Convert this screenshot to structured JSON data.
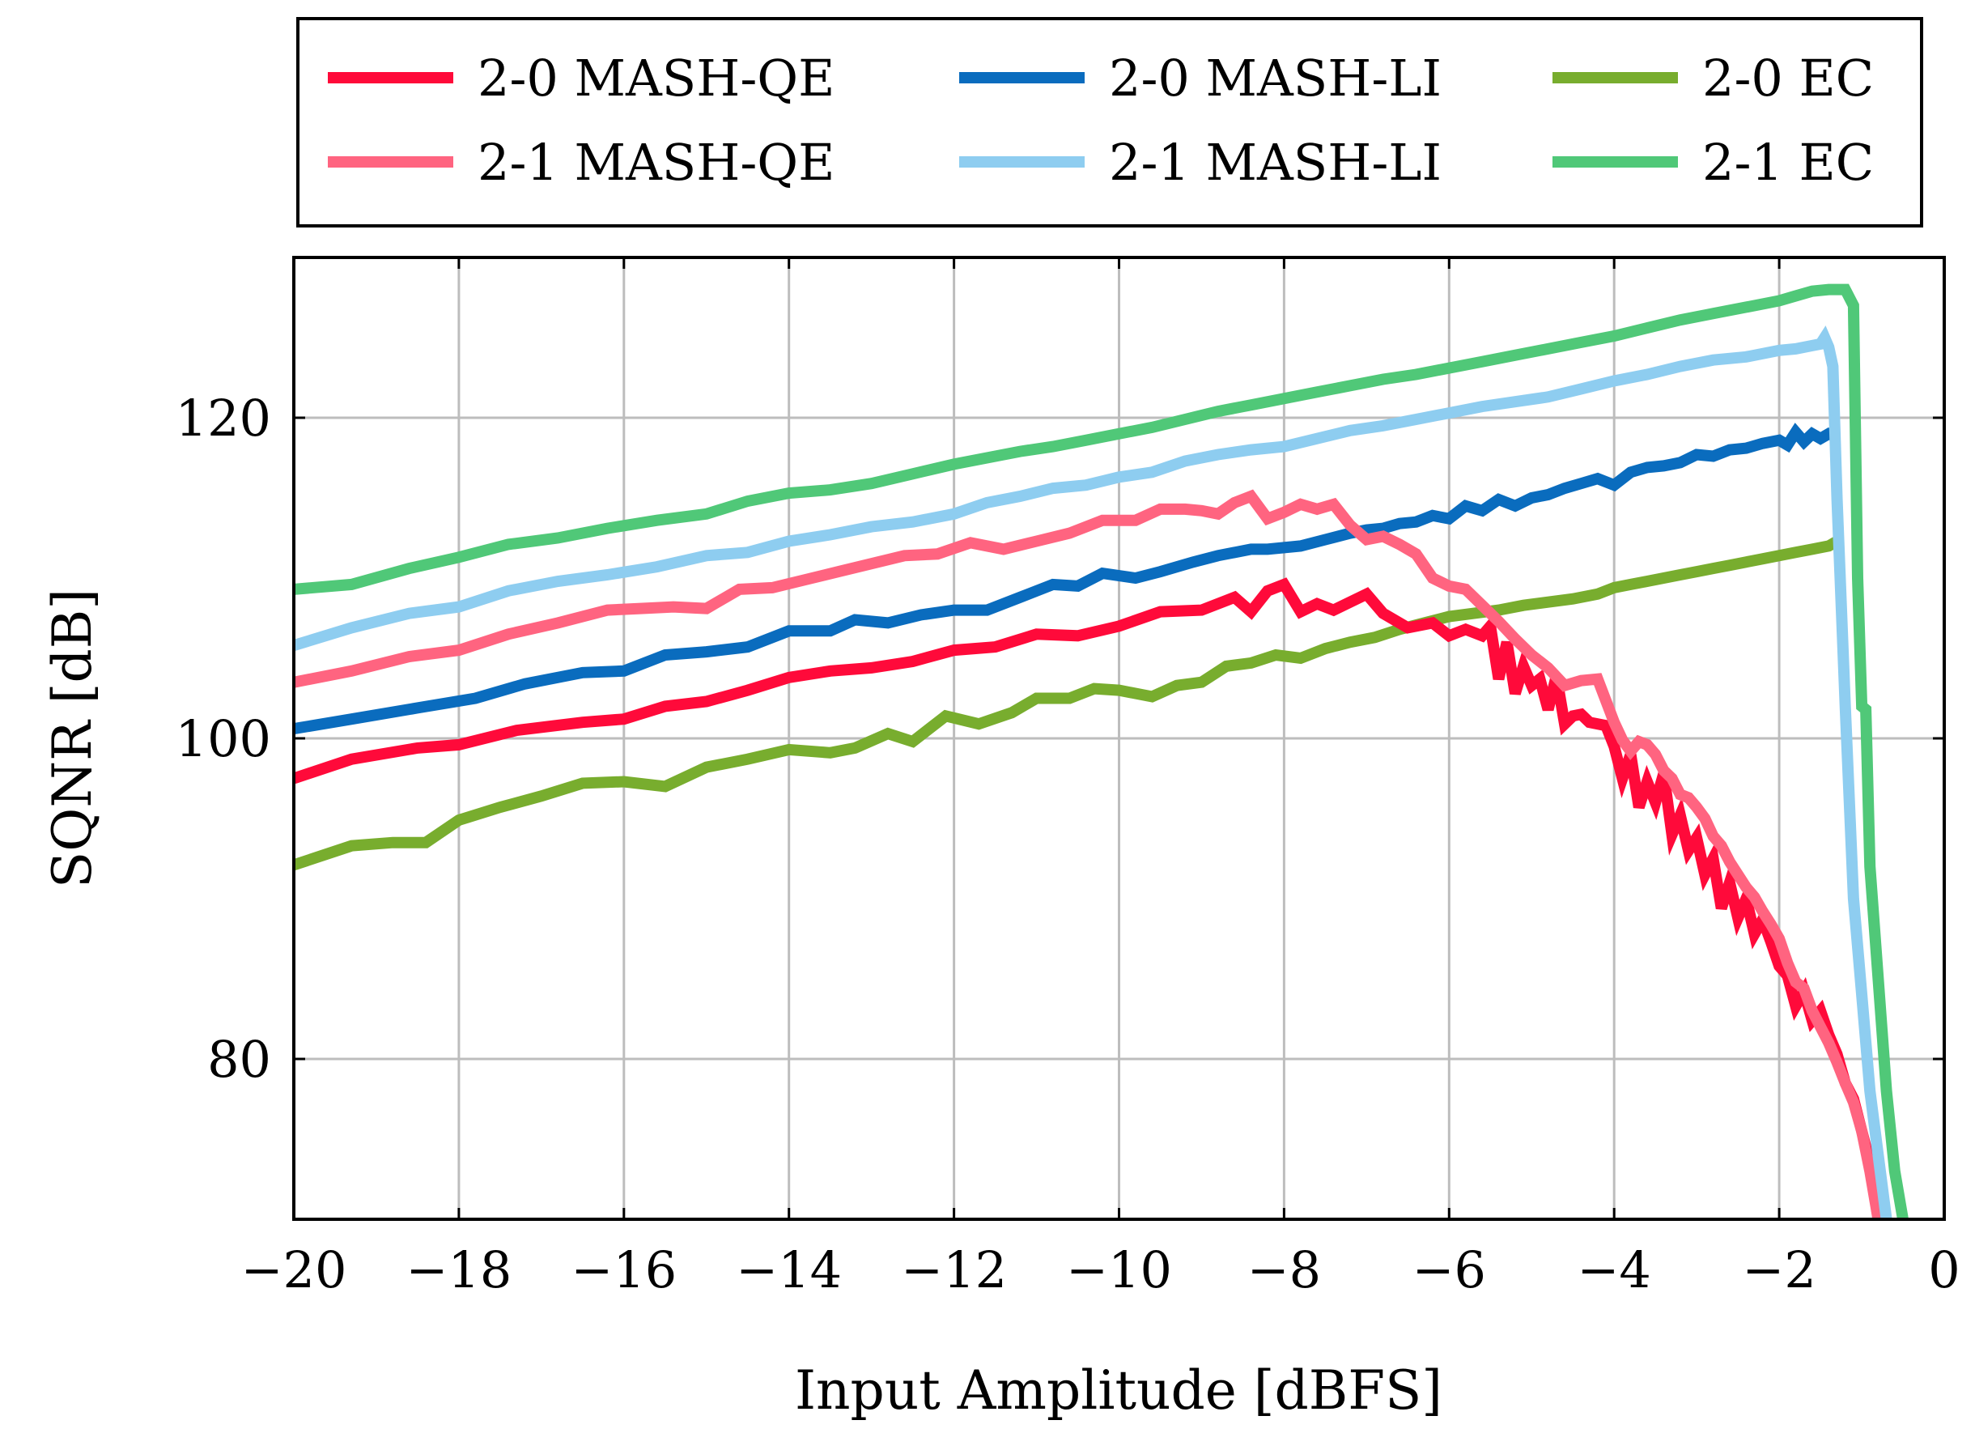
{
  "chart_data": {
    "type": "line",
    "title": "",
    "xlabel": "Input Amplitude [dBFS]",
    "ylabel": "SQNR [dB]",
    "xlim": [
      -20,
      0
    ],
    "ylim": [
      70,
      130
    ],
    "xticks": [
      -20,
      -18,
      -16,
      -14,
      -12,
      -10,
      -8,
      -6,
      -4,
      -2,
      0
    ],
    "xtick_labels": [
      "−20",
      "−18",
      "−16",
      "−14",
      "−12",
      "−10",
      "−8",
      "−6",
      "−4",
      "−2",
      "0"
    ],
    "yticks": [
      80,
      100,
      120
    ],
    "ytick_labels": [
      "80",
      "100",
      "120"
    ],
    "grid": true,
    "legend_position": "top, outside, 3 columns",
    "series": [
      {
        "name": "2-0 MASH-QE",
        "color": "#ff0a3a",
        "x": [
          -20,
          -19.3,
          -18.5,
          -18,
          -17.3,
          -16.5,
          -16,
          -15.5,
          -15,
          -14.5,
          -14,
          -13.5,
          -13,
          -12.5,
          -12,
          -11.5,
          -11,
          -10.5,
          -10,
          -9.5,
          -9,
          -8.6,
          -8.4,
          -8.2,
          -8,
          -7.8,
          -7.6,
          -7.4,
          -7.2,
          -7,
          -6.8,
          -6.5,
          -6.2,
          -6,
          -5.8,
          -5.6,
          -5.5,
          -5.4,
          -5.3,
          -5.2,
          -5.1,
          -5.0,
          -4.9,
          -4.8,
          -4.7,
          -4.6,
          -4.5,
          -4.4,
          -4.3,
          -4.1,
          -4.0,
          -3.9,
          -3.8,
          -3.7,
          -3.6,
          -3.5,
          -3.4,
          -3.3,
          -3.2,
          -3.1,
          -3.0,
          -2.9,
          -2.8,
          -2.7,
          -2.6,
          -2.5,
          -2.4,
          -2.3,
          -2.2,
          -2.1,
          -2.0,
          -1.9,
          -1.8,
          -1.7,
          -1.6,
          -1.5,
          -1.4,
          -1.3,
          -1.2,
          -1.1,
          -1.0,
          -0.9,
          -0.8
        ],
        "values": [
          97.5,
          98.7,
          99.4,
          99.6,
          100.5,
          101.0,
          101.2,
          102.0,
          102.3,
          103.0,
          103.8,
          104.2,
          104.4,
          104.8,
          105.5,
          105.7,
          106.5,
          106.4,
          107.0,
          107.9,
          108.0,
          108.8,
          107.9,
          109.2,
          109.6,
          107.9,
          108.4,
          108.0,
          108.5,
          109.0,
          107.8,
          106.9,
          107.2,
          106.4,
          106.8,
          106.4,
          107.0,
          103.7,
          106.0,
          102.8,
          104.5,
          103.3,
          103.7,
          101.8,
          103.9,
          100.9,
          101.4,
          101.5,
          101.0,
          100.8,
          99.5,
          97.5,
          99.0,
          95.7,
          97.3,
          96.0,
          97.8,
          94.0,
          95.2,
          93.0,
          93.8,
          91.5,
          92.5,
          89.4,
          91.0,
          88.8,
          90.0,
          87.8,
          88.7,
          87.3,
          85.8,
          85.2,
          83.3,
          84.2,
          82.4,
          83.0,
          81.5,
          80.3,
          78.5,
          77.5,
          75.5,
          73.5,
          70.0
        ]
      },
      {
        "name": "2-0 MASH-LI",
        "color": "#0a6cbe",
        "x": [
          -20,
          -19.3,
          -18.5,
          -17.8,
          -17.2,
          -16.5,
          -16,
          -15.5,
          -15,
          -14.5,
          -14,
          -13.5,
          -13.2,
          -12.8,
          -12.4,
          -12,
          -11.6,
          -11.2,
          -10.8,
          -10.5,
          -10.2,
          -9.8,
          -9.5,
          -9.1,
          -8.8,
          -8.4,
          -8.2,
          -7.8,
          -7.5,
          -7.2,
          -7.0,
          -6.8,
          -6.6,
          -6.4,
          -6.2,
          -6.0,
          -5.8,
          -5.6,
          -5.4,
          -5.2,
          -5.0,
          -4.8,
          -4.6,
          -4.4,
          -4.2,
          -4.0,
          -3.8,
          -3.6,
          -3.4,
          -3.2,
          -3.0,
          -2.8,
          -2.6,
          -2.4,
          -2.2,
          -2.0,
          -1.9,
          -1.8,
          -1.7,
          -1.6,
          -1.5,
          -1.4,
          -1.3
        ],
        "values": [
          100.6,
          101.2,
          101.9,
          102.5,
          103.4,
          104.1,
          104.2,
          105.2,
          105.4,
          105.7,
          106.7,
          106.7,
          107.4,
          107.2,
          107.7,
          108.0,
          108.0,
          108.8,
          109.6,
          109.5,
          110.3,
          110.0,
          110.4,
          111.0,
          111.4,
          111.8,
          111.8,
          112.0,
          112.4,
          112.8,
          113.0,
          113.1,
          113.4,
          113.5,
          113.9,
          113.7,
          114.5,
          114.2,
          114.9,
          114.5,
          115.0,
          115.2,
          115.6,
          115.9,
          116.2,
          115.8,
          116.6,
          116.9,
          117.0,
          117.2,
          117.7,
          117.6,
          118.0,
          118.1,
          118.4,
          118.6,
          118.3,
          119.1,
          118.5,
          119.0,
          118.7,
          119.0,
          118.8
        ]
      },
      {
        "name": "2-0 EC",
        "color": "#78ad2e",
        "x": [
          -20,
          -19.3,
          -18.8,
          -18.4,
          -18.0,
          -17.5,
          -17.0,
          -16.5,
          -16.0,
          -15.5,
          -15.0,
          -14.5,
          -14.0,
          -13.5,
          -13.2,
          -12.8,
          -12.5,
          -12.1,
          -11.7,
          -11.3,
          -11.0,
          -10.6,
          -10.3,
          -10.0,
          -9.6,
          -9.3,
          -9.0,
          -8.7,
          -8.4,
          -8.1,
          -7.8,
          -7.5,
          -7.2,
          -6.9,
          -6.6,
          -6.3,
          -6.0,
          -5.7,
          -5.4,
          -5.1,
          -4.8,
          -4.5,
          -4.2,
          -4.0,
          -3.8,
          -3.6,
          -3.4,
          -3.2,
          -3.0,
          -2.8,
          -2.6,
          -2.4,
          -2.2,
          -2.0,
          -1.8,
          -1.6,
          -1.4,
          -1.3
        ],
        "values": [
          92.1,
          93.3,
          93.5,
          93.5,
          94.9,
          95.7,
          96.4,
          97.2,
          97.3,
          97.0,
          98.2,
          98.7,
          99.3,
          99.1,
          99.4,
          100.3,
          99.8,
          101.4,
          100.9,
          101.6,
          102.5,
          102.5,
          103.1,
          103.0,
          102.6,
          103.3,
          103.5,
          104.5,
          104.7,
          105.2,
          105.0,
          105.6,
          106.0,
          106.3,
          106.8,
          107.2,
          107.6,
          107.8,
          108.0,
          108.3,
          108.5,
          108.7,
          109.0,
          109.4,
          109.6,
          109.8,
          110.0,
          110.2,
          110.4,
          110.6,
          110.8,
          111.0,
          111.2,
          111.4,
          111.6,
          111.8,
          112.0,
          112.3
        ]
      },
      {
        "name": "2-1 MASH-QE",
        "color": "#ff6480",
        "x": [
          -20,
          -19.3,
          -18.6,
          -18.0,
          -17.4,
          -16.8,
          -16.2,
          -15.8,
          -15.4,
          -15.0,
          -14.6,
          -14.2,
          -13.8,
          -13.4,
          -13.0,
          -12.6,
          -12.2,
          -11.8,
          -11.4,
          -11.0,
          -10.6,
          -10.2,
          -9.8,
          -9.5,
          -9.2,
          -9.0,
          -8.8,
          -8.6,
          -8.4,
          -8.2,
          -8.0,
          -7.8,
          -7.6,
          -7.4,
          -7.2,
          -7.0,
          -6.8,
          -6.6,
          -6.4,
          -6.2,
          -6.0,
          -5.8,
          -5.6,
          -5.4,
          -5.2,
          -5.0,
          -4.8,
          -4.6,
          -4.4,
          -4.2,
          -4.0,
          -3.9,
          -3.8,
          -3.7,
          -3.6,
          -3.5,
          -3.4,
          -3.3,
          -3.2,
          -3.1,
          -3.0,
          -2.9,
          -2.8,
          -2.7,
          -2.6,
          -2.5,
          -2.4,
          -2.3,
          -2.2,
          -2.1,
          -2.0,
          -1.9,
          -1.8,
          -1.7,
          -1.6,
          -1.5,
          -1.4,
          -1.3,
          -1.2,
          -1.1,
          -1.0,
          -0.9,
          -0.8
        ],
        "values": [
          103.5,
          104.2,
          105.1,
          105.5,
          106.5,
          107.2,
          108.0,
          108.1,
          108.2,
          108.1,
          109.3,
          109.4,
          109.9,
          110.4,
          110.9,
          111.4,
          111.5,
          112.2,
          111.8,
          112.3,
          112.8,
          113.6,
          113.6,
          114.3,
          114.3,
          114.2,
          114.0,
          114.7,
          115.1,
          113.7,
          114.1,
          114.6,
          114.3,
          114.6,
          113.3,
          112.4,
          112.6,
          112.1,
          111.5,
          110.0,
          109.5,
          109.3,
          108.3,
          107.3,
          106.2,
          105.2,
          104.4,
          103.3,
          103.6,
          103.7,
          101.0,
          99.9,
          99.2,
          99.8,
          99.6,
          99.0,
          98.0,
          97.5,
          96.5,
          96.3,
          95.7,
          95.0,
          93.9,
          93.3,
          92.3,
          91.5,
          90.7,
          90.1,
          89.2,
          88.4,
          87.5,
          86.0,
          84.8,
          84.4,
          83.0,
          82.0,
          81.0,
          79.8,
          78.5,
          77.3,
          75.5,
          73.0,
          70.0
        ]
      },
      {
        "name": "2-1 MASH-LI",
        "color": "#8ecdf0",
        "x": [
          -20,
          -19.3,
          -18.6,
          -18.0,
          -17.4,
          -16.8,
          -16.2,
          -15.6,
          -15.0,
          -14.5,
          -14.0,
          -13.5,
          -13.0,
          -12.5,
          -12.0,
          -11.6,
          -11.2,
          -10.8,
          -10.4,
          -10.0,
          -9.6,
          -9.2,
          -8.8,
          -8.4,
          -8.0,
          -7.6,
          -7.2,
          -6.8,
          -6.4,
          -6.0,
          -5.6,
          -5.2,
          -4.8,
          -4.4,
          -4.0,
          -3.6,
          -3.2,
          -2.8,
          -2.4,
          -2.0,
          -1.8,
          -1.6,
          -1.5,
          -1.45,
          -1.4,
          -1.35,
          -1.3,
          -1.2,
          -1.1,
          -1.0,
          -0.9,
          -0.8,
          -0.7
        ],
        "values": [
          105.8,
          106.9,
          107.8,
          108.2,
          109.2,
          109.8,
          110.2,
          110.7,
          111.4,
          111.6,
          112.3,
          112.7,
          113.2,
          113.5,
          114.0,
          114.7,
          115.1,
          115.6,
          115.8,
          116.3,
          116.6,
          117.3,
          117.7,
          118.0,
          118.2,
          118.7,
          119.2,
          119.5,
          119.9,
          120.3,
          120.7,
          121.0,
          121.3,
          121.8,
          122.3,
          122.7,
          123.2,
          123.6,
          123.8,
          124.2,
          124.3,
          124.5,
          124.6,
          125.0,
          124.4,
          123.2,
          115.0,
          102.0,
          90.0,
          84.0,
          78.0,
          74.0,
          70.0
        ]
      },
      {
        "name": "2-1 EC",
        "color": "#50c878",
        "x": [
          -20,
          -19.3,
          -18.6,
          -18.0,
          -17.4,
          -16.8,
          -16.2,
          -15.6,
          -15.0,
          -14.5,
          -14.0,
          -13.5,
          -13.0,
          -12.5,
          -12.0,
          -11.6,
          -11.2,
          -10.8,
          -10.4,
          -10.0,
          -9.6,
          -9.2,
          -8.8,
          -8.4,
          -8.0,
          -7.6,
          -7.2,
          -6.8,
          -6.4,
          -6.0,
          -5.6,
          -5.2,
          -4.8,
          -4.4,
          -4.0,
          -3.6,
          -3.2,
          -2.8,
          -2.4,
          -2.0,
          -1.8,
          -1.6,
          -1.4,
          -1.2,
          -1.1,
          -1.05,
          -1.0,
          -0.95,
          -0.9,
          -0.8,
          -0.7,
          -0.6,
          -0.5
        ],
        "values": [
          109.3,
          109.6,
          110.6,
          111.3,
          112.1,
          112.5,
          113.1,
          113.6,
          114.0,
          114.8,
          115.3,
          115.5,
          115.9,
          116.5,
          117.1,
          117.5,
          117.9,
          118.2,
          118.6,
          119.0,
          119.4,
          119.9,
          120.4,
          120.8,
          121.2,
          121.6,
          122.0,
          122.4,
          122.7,
          123.1,
          123.5,
          123.9,
          124.3,
          124.7,
          125.1,
          125.6,
          126.1,
          126.5,
          126.9,
          127.3,
          127.6,
          127.9,
          128.0,
          128.0,
          127.0,
          110.0,
          102.0,
          101.8,
          92.0,
          85.0,
          78.0,
          73.0,
          70.0
        ]
      }
    ]
  }
}
